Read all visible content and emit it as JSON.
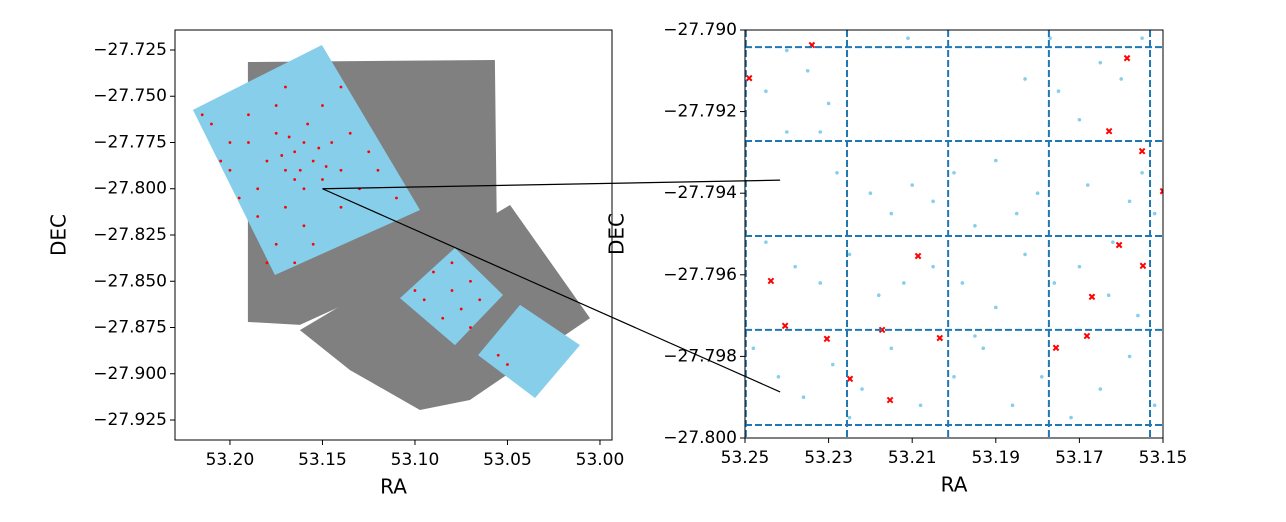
{
  "chart_data": [
    {
      "type": "scatter",
      "xlabel": "RA",
      "ylabel": "DEC",
      "xlim": [
        53.2297,
        52.9935
      ],
      "ylim": [
        -27.9358,
        -27.7142
      ],
      "xticks": [
        {
          "value": 53.2,
          "label": "53.20"
        },
        53.15,
        {
          "value": 53.1,
          "label": "53.10"
        },
        53.05,
        {
          "value": 53.0,
          "label": "53.00"
        }
      ],
      "yticks": [
        {
          "value": -27.725,
          "label": "−27.725"
        },
        {
          "value": -27.75,
          "label": "−27.750"
        },
        {
          "value": -27.775,
          "label": "−27.775"
        },
        {
          "value": -27.8,
          "label": "−27.800"
        },
        {
          "value": -27.825,
          "label": "−27.825"
        },
        {
          "value": -27.85,
          "label": "−27.850"
        },
        {
          "value": -27.875,
          "label": "−27.875"
        },
        {
          "value": -27.9,
          "label": "−27.900"
        },
        {
          "value": -27.925,
          "label": "−27.925"
        }
      ],
      "regions": [
        {
          "color": "#808080",
          "x": [
            53.1903,
            53.0568,
            53.0557,
            53.1622,
            53.1903
          ],
          "y": [
            -27.7315,
            -27.7304,
            -27.825,
            -27.8736,
            -27.872
          ]
        },
        {
          "color": "#808080",
          "x": [
            53.1622,
            53.0486,
            53.0054,
            53.0703,
            53.0973,
            53.1351
          ],
          "y": [
            -27.8764,
            -27.8088,
            -27.8699,
            -27.9142,
            -27.9196,
            -27.898
          ]
        },
        {
          "color": "#87ceeb",
          "x": [
            53.22,
            53.1503,
            53.0973,
            53.1757
          ],
          "y": [
            -27.7574,
            -27.7223,
            -27.8115,
            -27.8466
          ]
        },
        {
          "color": "#87ceeb",
          "x": [
            53.1081,
            53.0784,
            53.0524,
            53.0784
          ],
          "y": [
            -27.8591,
            -27.832,
            -27.8574,
            -27.8845
          ]
        },
        {
          "color": "#87ceeb",
          "x": [
            53.0659,
            53.0432,
            53.0108,
            53.0351
          ],
          "y": [
            -27.8899,
            -27.8628,
            -27.8845,
            -27.9131
          ]
        }
      ],
      "series": [
        {
          "color": "#ff0000",
          "marker": "dot",
          "x": [
            53.165,
            53.16,
            53.17,
            53.155,
            53.175,
            53.15,
            53.18,
            53.145,
            53.165,
            53.158,
            53.19,
            53.2,
            53.21,
            53.185,
            53.17,
            53.16,
            53.175,
            53.14,
            53.13,
            53.12,
            53.135,
            53.15,
            53.14,
            53.17,
            53.2,
            53.195,
            53.18,
            53.165,
            53.155,
            53.11,
            53.125,
            53.19,
            53.175,
            53.16,
            53.148,
            53.168,
            53.162,
            53.172,
            53.152,
            53.215,
            53.205,
            53.185,
            53.14,
            53.09,
            53.08,
            53.07,
            53.085,
            53.075,
            53.095,
            53.065,
            53.08,
            53.1,
            53.07,
            53.055,
            53.05
          ],
          "y": [
            -27.78,
            -27.775,
            -27.79,
            -27.785,
            -27.77,
            -27.795,
            -27.785,
            -27.775,
            -27.795,
            -27.765,
            -27.76,
            -27.775,
            -27.765,
            -27.8,
            -27.81,
            -27.82,
            -27.83,
            -27.81,
            -27.8,
            -27.79,
            -27.77,
            -27.755,
            -27.745,
            -27.745,
            -27.79,
            -27.805,
            -27.84,
            -27.84,
            -27.83,
            -27.805,
            -27.78,
            -27.775,
            -27.755,
            -27.8,
            -27.788,
            -27.772,
            -27.79,
            -27.782,
            -27.778,
            -27.76,
            -27.785,
            -27.815,
            -27.79,
            -27.845,
            -27.855,
            -27.85,
            -27.87,
            -27.865,
            -27.86,
            -27.86,
            -27.84,
            -27.855,
            -27.875,
            -27.89,
            -27.895
          ]
        }
      ],
      "connectors": [
        {
          "from": [
            53.15,
            -27.8
          ],
          "to": [
            53.2416,
            -27.79368
          ]
        },
        {
          "from": [
            53.15,
            -27.8
          ],
          "to": [
            53.2416,
            -27.79887
          ]
        }
      ]
    },
    {
      "type": "scatter",
      "xlabel": "RA",
      "ylabel": "DEC",
      "xlim": [
        53.25,
        53.15
      ],
      "ylim": [
        -27.8,
        -27.79
      ],
      "xticks": [
        53.25,
        53.23,
        53.21,
        53.19,
        53.17,
        53.15
      ],
      "yticks": [
        {
          "value": -27.79,
          "label": "−27.790"
        },
        {
          "value": -27.792,
          "label": "−27.792"
        },
        {
          "value": -27.794,
          "label": "−27.794"
        },
        {
          "value": -27.796,
          "label": "−27.796"
        },
        {
          "value": -27.798,
          "label": "−27.798"
        },
        {
          "value": -27.8,
          "label": "−27.800"
        }
      ],
      "line_color": "#1f77b4",
      "vlines": [
        53.2498,
        53.2256,
        53.2014,
        53.1773,
        53.1531
      ],
      "hlines": [
        -27.79042,
        -27.79272,
        -27.79505,
        -27.79735,
        -27.79968
      ],
      "series": [
        {
          "color": "#87ceeb",
          "marker": "dot",
          "x": [
            53.245,
            53.24,
            53.235,
            53.23,
            53.228,
            53.22,
            53.215,
            53.21,
            53.205,
            53.2,
            53.195,
            53.19,
            53.185,
            53.18,
            53.175,
            53.17,
            53.165,
            53.16,
            53.155,
            53.152,
            53.158,
            53.162,
            53.168,
            53.245,
            53.238,
            53.232,
            53.225,
            53.218,
            53.212,
            53.205,
            53.198,
            53.19,
            53.183,
            53.176,
            53.17,
            53.163,
            53.156,
            53.248,
            53.242,
            53.236,
            53.229,
            53.222,
            53.215,
            53.208,
            53.2,
            53.193,
            53.186,
            53.179,
            53.172,
            53.165,
            53.158,
            53.152,
            53.24,
            53.232,
            53.177,
            53.183,
            53.155,
            53.211,
            53.195,
            53.225
          ],
          "y": [
            -27.7915,
            -27.7925,
            -27.791,
            -27.7918,
            -27.7935,
            -27.794,
            -27.7945,
            -27.7938,
            -27.7942,
            -27.7935,
            -27.7948,
            -27.7932,
            -27.7945,
            -27.794,
            -27.7915,
            -27.7922,
            -27.7908,
            -27.7912,
            -27.7935,
            -27.7945,
            -27.7942,
            -27.7952,
            -27.7938,
            -27.7952,
            -27.7958,
            -27.7962,
            -27.7955,
            -27.7965,
            -27.7962,
            -27.7958,
            -27.7962,
            -27.7968,
            -27.7955,
            -27.7962,
            -27.7958,
            -27.7965,
            -27.797,
            -27.7978,
            -27.7985,
            -27.799,
            -27.7982,
            -27.7988,
            -27.7978,
            -27.7992,
            -27.7985,
            -27.7978,
            -27.7992,
            -27.7985,
            -27.7995,
            -27.7988,
            -27.798,
            -27.7992,
            -27.7905,
            -27.7925,
            -27.7902,
            -27.7912,
            -27.7902,
            -27.7902,
            -27.7975,
            -27.7995
          ]
        },
        {
          "color": "#ff0000",
          "marker": "x",
          "x": [
            53.234,
            53.249,
            53.2515,
            53.2515,
            53.1586,
            53.1629,
            53.155,
            53.15,
            53.1605,
            53.1548,
            53.2505,
            53.2438,
            53.2086,
            53.167,
            53.2404,
            53.2304,
            53.2172,
            53.2034,
            53.1756,
            53.1682,
            53.251,
            53.2249,
            53.2153
          ],
          "y": [
            -27.79037,
            -27.79118,
            -27.79314,
            -27.79331,
            -27.79069,
            -27.79248,
            -27.79297,
            -27.79395,
            -27.79527,
            -27.79578,
            -27.79576,
            -27.79615,
            -27.79554,
            -27.79654,
            -27.79725,
            -27.79757,
            -27.79735,
            -27.79755,
            -27.79779,
            -27.7975,
            -27.79845,
            -27.79855,
            -27.79907
          ]
        }
      ]
    }
  ]
}
